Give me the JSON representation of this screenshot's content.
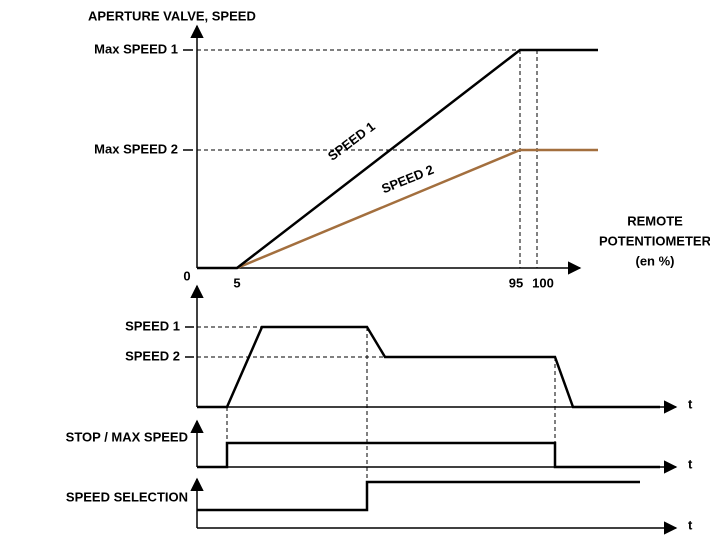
{
  "speed_chart": {
    "title": "APERTURE VALVE, SPEED",
    "y_labels": [
      "Max SPEED 1",
      "Max SPEED 2"
    ],
    "x_labels": [
      "0",
      "5",
      "95",
      "100"
    ],
    "x_axis_label": [
      "REMOTE",
      "POTENTIOMETER",
      "(en %)"
    ],
    "curve_labels": [
      "SPEED 1",
      "SPEED 2"
    ]
  },
  "timing": {
    "speed_levels": [
      "SPEED 1",
      "SPEED 2"
    ],
    "signals": [
      "STOP / MAX SPEED",
      "SPEED SELECTION"
    ],
    "time_label": "t"
  }
}
